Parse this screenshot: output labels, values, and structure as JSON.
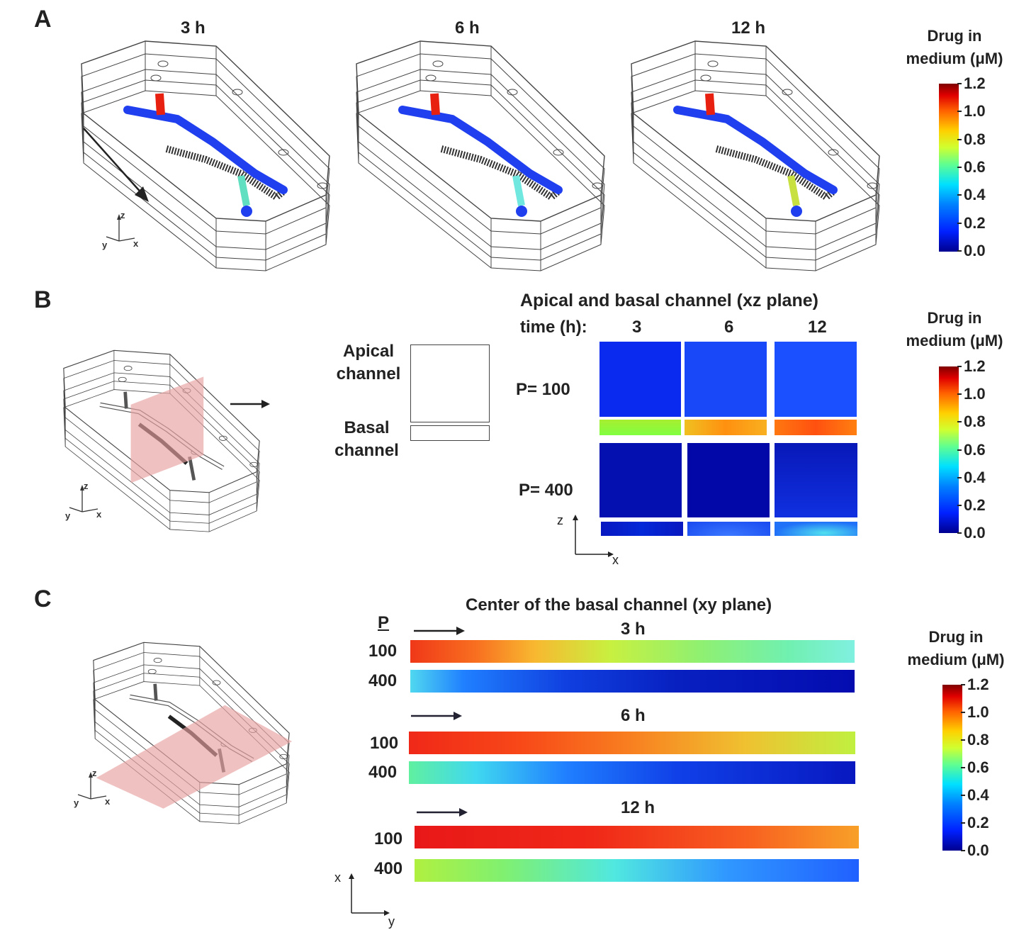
{
  "panels": {
    "A": {
      "label": "A",
      "times": [
        "3 h",
        "6 h",
        "12 h"
      ],
      "colorbar": {
        "title_line1": "Drug in",
        "title_line2": "medium (μM)",
        "ticks": [
          "1.2",
          "1.0",
          "0.8",
          "0.6",
          "0.4",
          "0.2",
          "0.0"
        ]
      },
      "axes": {
        "z": "z",
        "y": "y",
        "x": "x"
      }
    },
    "B": {
      "label": "B",
      "schematic": {
        "apical": [
          "Apical",
          "channel"
        ],
        "basal": [
          "Basal",
          "channel"
        ]
      },
      "title": "Apical and basal channel (xz  plane)",
      "time_label": "time (h):",
      "times": [
        "3",
        "6",
        "12"
      ],
      "rows": [
        "P= 100",
        "P= 400"
      ],
      "axes": {
        "z": "z",
        "x": "x",
        "y": "y"
      },
      "colorbar": {
        "title_line1": "Drug in",
        "title_line2": "medium (μM)",
        "ticks": [
          "1.2",
          "1.0",
          "0.8",
          "0.6",
          "0.4",
          "0.2",
          "0.0"
        ]
      }
    },
    "C": {
      "label": "C",
      "title": "Center of the basal channel (xy plane)",
      "p_header": "P",
      "groups": [
        {
          "time": "3 h",
          "rows": [
            "100",
            "400"
          ]
        },
        {
          "time": "6 h",
          "rows": [
            "100",
            "400"
          ]
        },
        {
          "time": "12 h",
          "rows": [
            "100",
            "400"
          ]
        }
      ],
      "axes": {
        "x": "x",
        "y": "y",
        "z": "z"
      },
      "colorbar": {
        "title_line1": "Drug in",
        "title_line2": "medium (μM)",
        "ticks": [
          "1.2",
          "1.0",
          "0.8",
          "0.6",
          "0.4",
          "0.2",
          "0.0"
        ]
      }
    }
  },
  "colors": {
    "plane": "#e8a0a0",
    "channel_blue": "#2040f0",
    "inlet_red": "#e82010"
  }
}
